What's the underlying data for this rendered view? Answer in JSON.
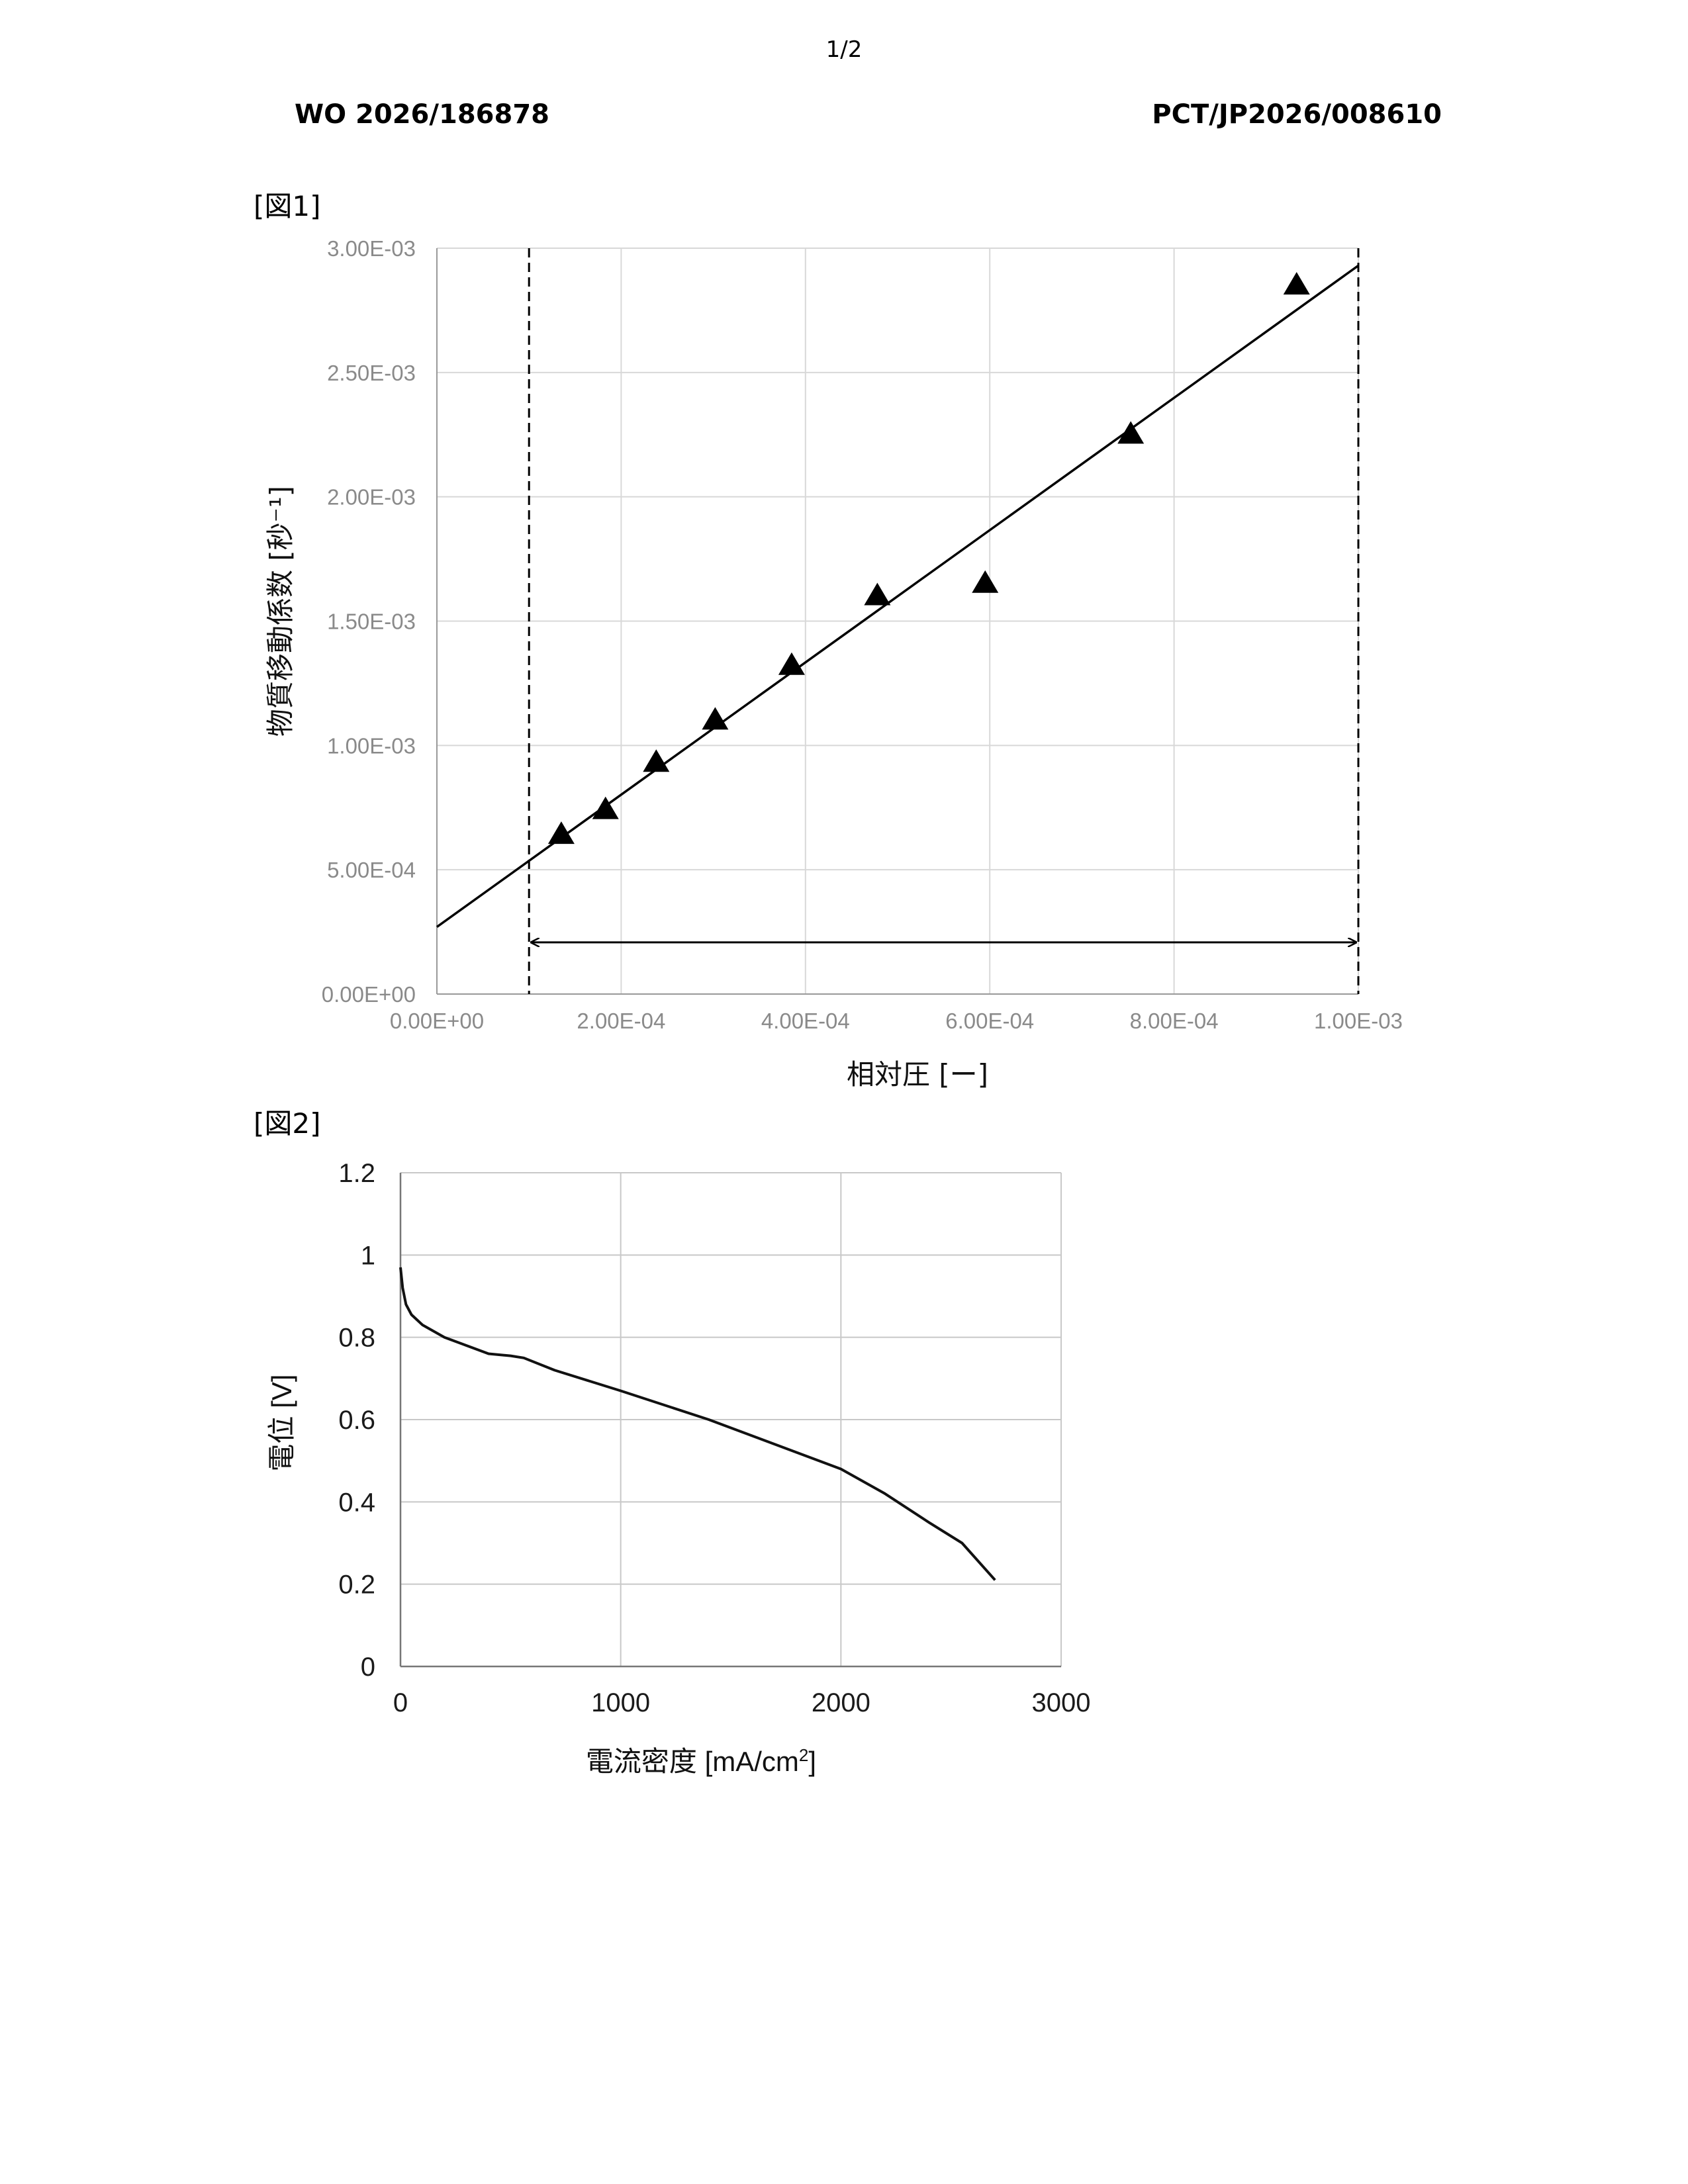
{
  "header": {
    "page_number": "1/2",
    "publication_number": "WO 2026/186878",
    "application_number": "PCT/JP2026/008610"
  },
  "figures": {
    "fig1_label": "[図1]",
    "fig2_label": "[図2]"
  },
  "chart_data": [
    {
      "type": "scatter",
      "xlabel": "相対圧 [ー]",
      "ylabel": "物質移動係数 [秒⁻¹]",
      "xlim": [
        0,
        0.001
      ],
      "ylim": [
        0,
        0.003
      ],
      "x_ticks": [
        0,
        0.0002,
        0.0004,
        0.0006,
        0.0008,
        0.001
      ],
      "x_tick_labels": [
        "0.00E+00",
        "2.00E-04",
        "4.00E-04",
        "6.00E-04",
        "8.00E-04",
        "1.00E-03"
      ],
      "y_ticks": [
        0,
        0.0005,
        0.001,
        0.0015,
        0.002,
        0.0025,
        0.003
      ],
      "y_tick_labels": [
        "0.00E+00",
        "5.00E-04",
        "1.00E-03",
        "1.50E-03",
        "2.00E-03",
        "2.50E-03",
        "3.00E-03"
      ],
      "grid": true,
      "series": [
        {
          "marker": "triangle",
          "x": [
            0.000135,
            0.000183,
            0.000238,
            0.000302,
            0.000385,
            0.000478,
            0.000595,
            0.000753,
            0.000933
          ],
          "y": [
            0.00064,
            0.00074,
            0.00093,
            0.0011,
            0.00132,
            0.0016,
            0.00165,
            0.00225,
            0.00285
          ]
        }
      ],
      "fit_line": {
        "x": [
          0,
          0.001
        ],
        "y": [
          0.00027,
          0.00293
        ]
      },
      "dashed_verticals_x": [
        0.0001,
        0.001
      ],
      "range_arrow": {
        "x": [
          0.0001,
          0.001
        ],
        "y": 0.0002
      }
    },
    {
      "type": "line",
      "xlabel": "電流密度 [mA/cm",
      "xlabel_sup": "2",
      "xlabel_end": "]",
      "ylabel": "電位 [V]",
      "xlim": [
        0,
        3000
      ],
      "ylim": [
        0,
        1.2
      ],
      "x_ticks": [
        0,
        1000,
        2000,
        3000
      ],
      "x_tick_labels": [
        "0",
        "1000",
        "2000",
        "3000"
      ],
      "y_ticks": [
        0,
        0.2,
        0.4,
        0.6,
        0.8,
        1,
        1.2
      ],
      "y_tick_labels": [
        "0",
        "0.2",
        "0.4",
        "0.6",
        "0.8",
        "1",
        "1.2"
      ],
      "grid": true,
      "series": [
        {
          "x": [
            0,
            10,
            25,
            50,
            100,
            200,
            300,
            400,
            500,
            560,
            700,
            1000,
            1400,
            1800,
            2000,
            2200,
            2400,
            2550,
            2700
          ],
          "y": [
            0.97,
            0.92,
            0.88,
            0.855,
            0.83,
            0.8,
            0.78,
            0.76,
            0.755,
            0.75,
            0.72,
            0.67,
            0.6,
            0.52,
            0.48,
            0.42,
            0.35,
            0.3,
            0.21
          ]
        }
      ]
    }
  ]
}
